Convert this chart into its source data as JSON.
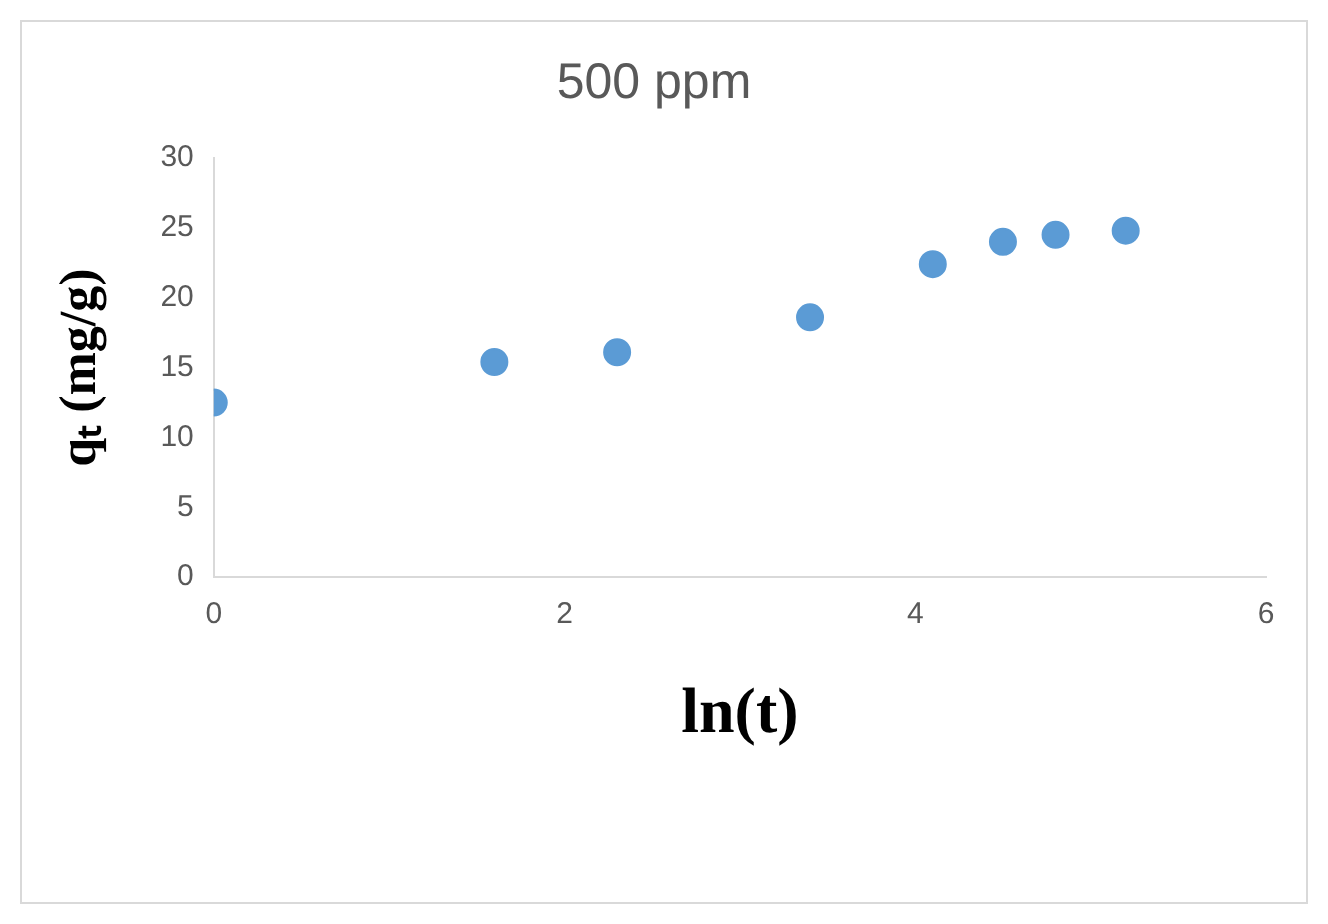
{
  "chart_data": {
    "type": "scatter",
    "title": "500 ppm",
    "xlabel": "ln(t)",
    "ylabel": "qₜ (mg/g)",
    "x": [
      0,
      1.6,
      2.3,
      3.4,
      4.1,
      4.5,
      4.8,
      5.2
    ],
    "series": [
      {
        "color": "#5b9bd5",
        "values": [
          12.5,
          15.4,
          16.1,
          18.6,
          22.4,
          24.0,
          24.5,
          24.8
        ]
      }
    ],
    "xlim": [
      0,
      6
    ],
    "xticks": [
      0,
      2,
      4,
      6
    ],
    "ylim": [
      0,
      30
    ],
    "yticks": [
      0,
      5,
      10,
      15,
      20,
      25,
      30
    ],
    "grid": false,
    "legend": false,
    "marker": "circle"
  }
}
